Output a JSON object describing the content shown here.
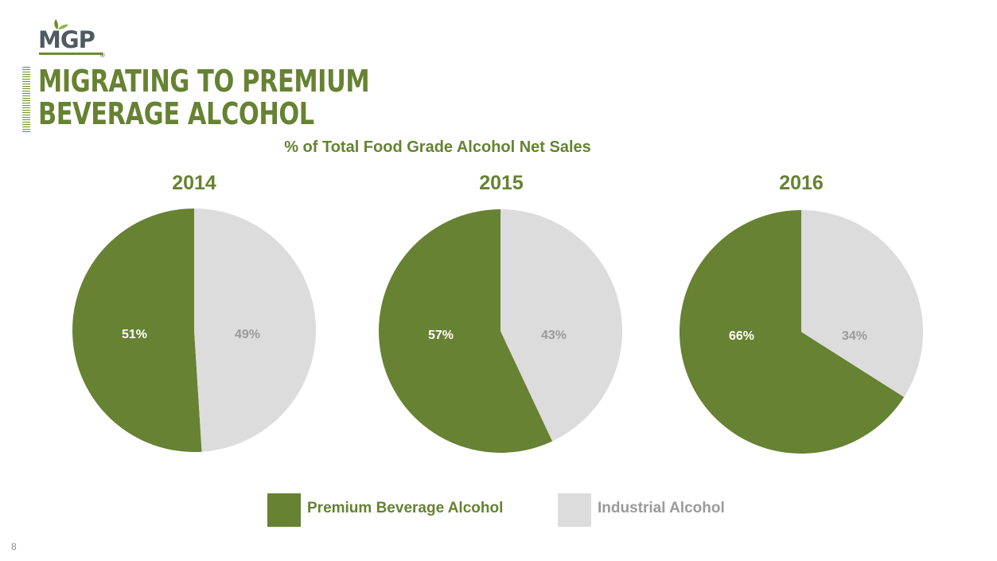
{
  "logo": {
    "text": "MGP",
    "mark": "®"
  },
  "slide": {
    "title": "Migrating to Premium Beverage Alcohol",
    "page_number": "8"
  },
  "colors": {
    "premium": "#668232",
    "industrial": "#dcdcdc",
    "industrial_text": "#9a9a9a"
  },
  "chart_data": {
    "type": "pie",
    "title": "% of Total Food Grade Alcohol Net Sales",
    "legend": [
      "Premium Beverage Alcohol",
      "Industrial Alcohol"
    ],
    "legend_placement": "bottom",
    "pies": [
      {
        "title": "2014",
        "slices": [
          {
            "name": "Premium Beverage Alcohol",
            "value": 51,
            "label": "51%"
          },
          {
            "name": "Industrial Alcohol",
            "value": 49,
            "label": "49%"
          }
        ]
      },
      {
        "title": "2015",
        "slices": [
          {
            "name": "Premium Beverage Alcohol",
            "value": 57,
            "label": "57%"
          },
          {
            "name": "Industrial Alcohol",
            "value": 43,
            "label": "43%"
          }
        ]
      },
      {
        "title": "2016",
        "slices": [
          {
            "name": "Premium Beverage Alcohol",
            "value": 66,
            "label": "66%"
          },
          {
            "name": "Industrial Alcohol",
            "value": 34,
            "label": "34%"
          }
        ]
      }
    ]
  }
}
